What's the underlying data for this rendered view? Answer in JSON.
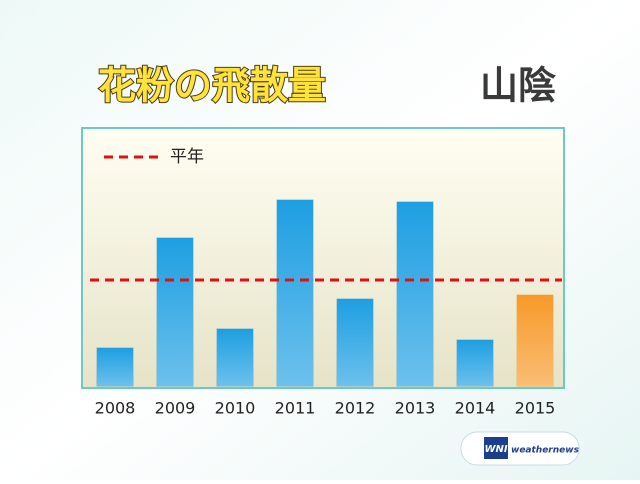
{
  "chart_data": {
    "type": "bar",
    "title": "花粉の飛散量",
    "region": "山陰",
    "categories": [
      "2008",
      "2009",
      "2010",
      "2011",
      "2012",
      "2013",
      "2014",
      "2015"
    ],
    "values": [
      38,
      148,
      57,
      186,
      87,
      184,
      46,
      91
    ],
    "colors": [
      "#1e9fe2",
      "#1e9fe2",
      "#1e9fe2",
      "#1e9fe2",
      "#1e9fe2",
      "#1e9fe2",
      "#1e9fe2",
      "#f79a2a"
    ],
    "reference": {
      "name": "平年",
      "value": 106,
      "color": "#e01010"
    },
    "ylim": [
      0,
      256
    ],
    "logo": {
      "mark": "WNI",
      "text": "weathernews"
    }
  }
}
